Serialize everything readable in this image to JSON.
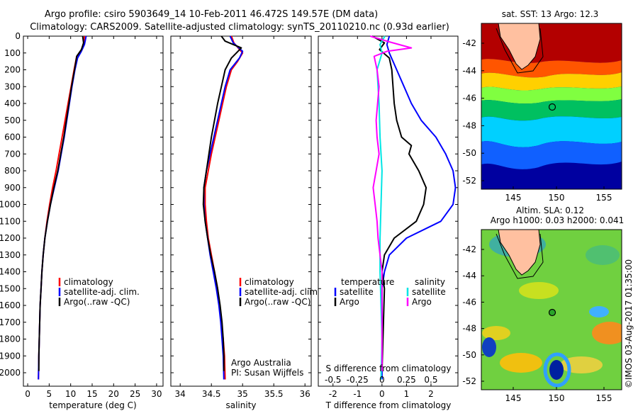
{
  "header": {
    "line1": "Argo profile: csiro 5903649_14 10-Feb-2011 46.472S 149.57E (DM data)",
    "line2": "Climatology: CARS2009. Satellite-adjusted climatology: synTS_20110210.nc (0.93d earlier)"
  },
  "colors": {
    "climatology": "#ff0000",
    "satellite": "#0000ff",
    "argo": "#000000",
    "sal_satellite": "#00e5e5",
    "sal_argo": "#ff00ff"
  },
  "chart_data": [
    {
      "type": "line",
      "id": "temperature",
      "xlabel": "temperature (deg C)",
      "xlim": [
        -1,
        31.5
      ],
      "xticks": [
        0,
        5,
        10,
        15,
        20,
        25,
        30
      ],
      "xticklabels": [
        "0",
        "5",
        "10",
        "15",
        "20",
        "25",
        "30"
      ],
      "ylim": [
        0,
        2080
      ],
      "yticks": [
        0,
        100,
        200,
        300,
        400,
        500,
        600,
        700,
        800,
        900,
        1000,
        1100,
        1200,
        1300,
        1400,
        1500,
        1600,
        1700,
        1800,
        1900,
        2000
      ],
      "yticklabels": [
        "0",
        "100",
        "200",
        "300",
        "400",
        "500",
        "600",
        "700",
        "800",
        "900",
        "1000",
        "1100",
        "1200",
        "1300",
        "1400",
        "1500",
        "1600",
        "1700",
        "1800",
        "1900",
        "2000"
      ],
      "legend": [
        "climatology",
        "satellite-adj. clim.",
        "Argo(..raw -QC)"
      ],
      "legend_placement": "lower-center",
      "series": [
        {
          "name": "climatology",
          "color": "#ff0000",
          "points": [
            [
              13.2,
              0
            ],
            [
              13.1,
              30
            ],
            [
              12.6,
              80
            ],
            [
              11.4,
              120
            ],
            [
              10.8,
              200
            ],
            [
              10.1,
              300
            ],
            [
              9.4,
              400
            ],
            [
              8.7,
              500
            ],
            [
              8.0,
              600
            ],
            [
              7.3,
              700
            ],
            [
              6.6,
              800
            ],
            [
              5.8,
              900
            ],
            [
              5.1,
              1000
            ],
            [
              4.5,
              1100
            ],
            [
              4.0,
              1200
            ],
            [
              3.6,
              1300
            ],
            [
              3.3,
              1400
            ],
            [
              3.1,
              1500
            ],
            [
              2.9,
              1600
            ],
            [
              2.8,
              1700
            ],
            [
              2.7,
              1800
            ],
            [
              2.6,
              1900
            ],
            [
              2.5,
              2040
            ]
          ]
        },
        {
          "name": "satellite-adj. clim.",
          "color": "#0000ff",
          "points": [
            [
              13.6,
              0
            ],
            [
              13.2,
              50
            ],
            [
              12.5,
              90
            ],
            [
              11.6,
              130
            ],
            [
              11.0,
              200
            ],
            [
              10.3,
              300
            ],
            [
              9.7,
              400
            ],
            [
              9.1,
              500
            ],
            [
              8.5,
              600
            ],
            [
              7.8,
              700
            ],
            [
              7.1,
              800
            ],
            [
              6.2,
              900
            ],
            [
              5.3,
              1000
            ],
            [
              4.6,
              1100
            ],
            [
              4.0,
              1200
            ],
            [
              3.6,
              1300
            ],
            [
              3.3,
              1400
            ],
            [
              3.1,
              1500
            ],
            [
              2.9,
              1600
            ],
            [
              2.8,
              1700
            ],
            [
              2.7,
              1800
            ],
            [
              2.6,
              1900
            ],
            [
              2.5,
              2040
            ]
          ]
        },
        {
          "name": "Argo(..raw -QC)",
          "color": "#000000",
          "points": [
            [
              12.8,
              0
            ],
            [
              13.0,
              40
            ],
            [
              12.5,
              80
            ],
            [
              11.4,
              120
            ],
            [
              10.9,
              200
            ],
            [
              10.2,
              300
            ],
            [
              9.6,
              400
            ],
            [
              9.0,
              500
            ],
            [
              8.4,
              600
            ],
            [
              7.7,
              700
            ],
            [
              7.0,
              800
            ],
            [
              6.1,
              900
            ],
            [
              5.3,
              1000
            ],
            [
              4.6,
              1100
            ],
            [
              4.0,
              1200
            ],
            [
              3.6,
              1300
            ],
            [
              3.3,
              1400
            ],
            [
              3.1,
              1500
            ],
            [
              2.9,
              1600
            ],
            [
              2.8,
              1700
            ],
            [
              2.7,
              1800
            ],
            [
              2.6,
              1900
            ],
            [
              2.6,
              1990
            ]
          ]
        }
      ]
    },
    {
      "type": "line",
      "id": "salinity",
      "xlabel": "salinity",
      "xlim": [
        33.85,
        36.1
      ],
      "xticks": [
        34,
        34.5,
        35,
        35.5,
        36
      ],
      "xticklabels": [
        "34",
        "34.5",
        "35",
        "35.5",
        "36"
      ],
      "ylim": [
        0,
        2080
      ],
      "legend": [
        "climatology",
        "satellite-adj. clim.",
        "Argo(..raw -QC)"
      ],
      "legend_placement": "lower-center",
      "annotation": [
        "Argo Australia",
        "PI: Susan Wijffels"
      ],
      "series": [
        {
          "name": "climatology",
          "color": "#ff0000",
          "points": [
            [
              34.82,
              0
            ],
            [
              34.86,
              40
            ],
            [
              35.0,
              100
            ],
            [
              34.92,
              150
            ],
            [
              34.82,
              200
            ],
            [
              34.74,
              300
            ],
            [
              34.68,
              400
            ],
            [
              34.62,
              500
            ],
            [
              34.56,
              600
            ],
            [
              34.5,
              700
            ],
            [
              34.45,
              800
            ],
            [
              34.4,
              900
            ],
            [
              34.4,
              1000
            ],
            [
              34.42,
              1100
            ],
            [
              34.45,
              1200
            ],
            [
              34.5,
              1300
            ],
            [
              34.55,
              1400
            ],
            [
              34.6,
              1500
            ],
            [
              34.63,
              1600
            ],
            [
              34.66,
              1700
            ],
            [
              34.69,
              1800
            ],
            [
              34.71,
              1900
            ],
            [
              34.72,
              2040
            ]
          ]
        },
        {
          "name": "satellite-adj. clim.",
          "color": "#0000ff",
          "points": [
            [
              34.8,
              0
            ],
            [
              34.85,
              40
            ],
            [
              35.0,
              90
            ],
            [
              34.95,
              130
            ],
            [
              34.8,
              200
            ],
            [
              34.72,
              300
            ],
            [
              34.66,
              400
            ],
            [
              34.6,
              500
            ],
            [
              34.54,
              600
            ],
            [
              34.48,
              700
            ],
            [
              34.42,
              800
            ],
            [
              34.38,
              900
            ],
            [
              34.38,
              1000
            ],
            [
              34.4,
              1100
            ],
            [
              34.44,
              1200
            ],
            [
              34.48,
              1300
            ],
            [
              34.53,
              1400
            ],
            [
              34.58,
              1500
            ],
            [
              34.62,
              1600
            ],
            [
              34.65,
              1700
            ],
            [
              34.67,
              1800
            ],
            [
              34.69,
              1900
            ],
            [
              34.7,
              2040
            ]
          ]
        },
        {
          "name": "Argo(..raw -QC)",
          "color": "#000000",
          "points": [
            [
              34.66,
              0
            ],
            [
              34.72,
              30
            ],
            [
              34.98,
              70
            ],
            [
              34.9,
              100
            ],
            [
              34.82,
              130
            ],
            [
              34.72,
              200
            ],
            [
              34.66,
              300
            ],
            [
              34.6,
              400
            ],
            [
              34.55,
              500
            ],
            [
              34.5,
              600
            ],
            [
              34.46,
              700
            ],
            [
              34.42,
              800
            ],
            [
              34.38,
              900
            ],
            [
              34.37,
              1000
            ],
            [
              34.4,
              1100
            ],
            [
              34.44,
              1200
            ],
            [
              34.49,
              1300
            ],
            [
              34.55,
              1400
            ],
            [
              34.6,
              1500
            ],
            [
              34.64,
              1600
            ],
            [
              34.67,
              1700
            ],
            [
              34.69,
              1800
            ],
            [
              34.7,
              1900
            ],
            [
              34.7,
              1990
            ]
          ]
        }
      ]
    },
    {
      "type": "line",
      "id": "differences",
      "xlabel": "T difference from climatology",
      "xlabel_top": "S difference from climatology",
      "xlim": [
        -2.6,
        3.1
      ],
      "xticks": [
        -2,
        -1,
        0,
        1,
        2
      ],
      "xticklabels": [
        "-2",
        "-1",
        "0",
        "1",
        "2"
      ],
      "sticklabels": [
        "-0.5",
        "-0.25",
        "0",
        "0.25",
        "0.5"
      ],
      "ylim": [
        0,
        2080
      ],
      "legend_temperature_title": "temperature",
      "legend_salinity_title": "salinity",
      "legend_temperature": [
        "satellite",
        "Argo"
      ],
      "legend_salinity": [
        "satellite",
        "Argo"
      ],
      "series": [
        {
          "name": "T satellite",
          "color": "#0000ff",
          "points": [
            [
              0.3,
              0
            ],
            [
              0.2,
              50
            ],
            [
              0.3,
              100
            ],
            [
              0.6,
              200
            ],
            [
              0.9,
              300
            ],
            [
              1.2,
              400
            ],
            [
              1.6,
              500
            ],
            [
              2.2,
              600
            ],
            [
              2.6,
              700
            ],
            [
              2.9,
              800
            ],
            [
              3.0,
              900
            ],
            [
              2.9,
              1000
            ],
            [
              2.4,
              1100
            ],
            [
              1.0,
              1200
            ],
            [
              0.3,
              1300
            ],
            [
              0.1,
              1400
            ],
            [
              0.0,
              1500
            ],
            [
              0.0,
              2040
            ]
          ]
        },
        {
          "name": "T Argo",
          "color": "#000000",
          "points": [
            [
              -0.4,
              0
            ],
            [
              0.1,
              40
            ],
            [
              -0.1,
              80
            ],
            [
              0.3,
              130
            ],
            [
              0.4,
              200
            ],
            [
              0.5,
              400
            ],
            [
              0.6,
              500
            ],
            [
              0.8,
              600
            ],
            [
              1.2,
              650
            ],
            [
              1.1,
              700
            ],
            [
              1.5,
              800
            ],
            [
              1.8,
              900
            ],
            [
              1.7,
              1000
            ],
            [
              1.4,
              1100
            ],
            [
              0.5,
              1200
            ],
            [
              0.1,
              1300
            ],
            [
              0.0,
              1400
            ],
            [
              0.1,
              1500
            ],
            [
              0.0,
              1990
            ]
          ]
        },
        {
          "name": "S satellite",
          "color": "#00e5e5",
          "points": [
            [
              0.03,
              0
            ],
            [
              -0.02,
              50
            ],
            [
              0.0,
              100
            ],
            [
              -0.05,
              200
            ],
            [
              -0.03,
              400
            ],
            [
              -0.02,
              600
            ],
            [
              0.0,
              800
            ],
            [
              -0.01,
              1000
            ],
            [
              -0.02,
              1200
            ],
            [
              -0.02,
              1400
            ],
            [
              -0.01,
              1600
            ],
            [
              0.0,
              1800
            ],
            [
              -0.01,
              2040
            ]
          ]
        },
        {
          "name": "S Argo",
          "color": "#ff00ff",
          "points": [
            [
              -0.12,
              0
            ],
            [
              0.05,
              30
            ],
            [
              0.3,
              70
            ],
            [
              0.05,
              90
            ],
            [
              -0.08,
              120
            ],
            [
              -0.05,
              200
            ],
            [
              -0.03,
              300
            ],
            [
              -0.06,
              500
            ],
            [
              -0.05,
              600
            ],
            [
              -0.03,
              700
            ],
            [
              -0.06,
              800
            ],
            [
              -0.09,
              900
            ],
            [
              -0.07,
              1000
            ],
            [
              -0.05,
              1100
            ],
            [
              -0.04,
              1200
            ],
            [
              -0.02,
              1300
            ],
            [
              0.0,
              1400
            ],
            [
              0.0,
              1600
            ],
            [
              0.0,
              1990
            ]
          ]
        }
      ]
    }
  ],
  "maps": {
    "sst": {
      "title": "sat. SST: 13 Argo: 12.3",
      "yticks": [
        "-42",
        "-44",
        "-46",
        "-48",
        "-50",
        "-52"
      ],
      "xticks": [
        "145",
        "150",
        "155"
      ]
    },
    "sla": {
      "title1": "Altim. SLA: 0.12",
      "title2": "Argo h1000: 0.03 h2000: 0.041",
      "yticks": [
        "-42",
        "-44",
        "-46",
        "-48",
        "-50",
        "-52"
      ],
      "xticks": [
        "145",
        "150",
        "155"
      ]
    }
  },
  "credit": "©IMOS 03-Aug-2017 01:35:00"
}
